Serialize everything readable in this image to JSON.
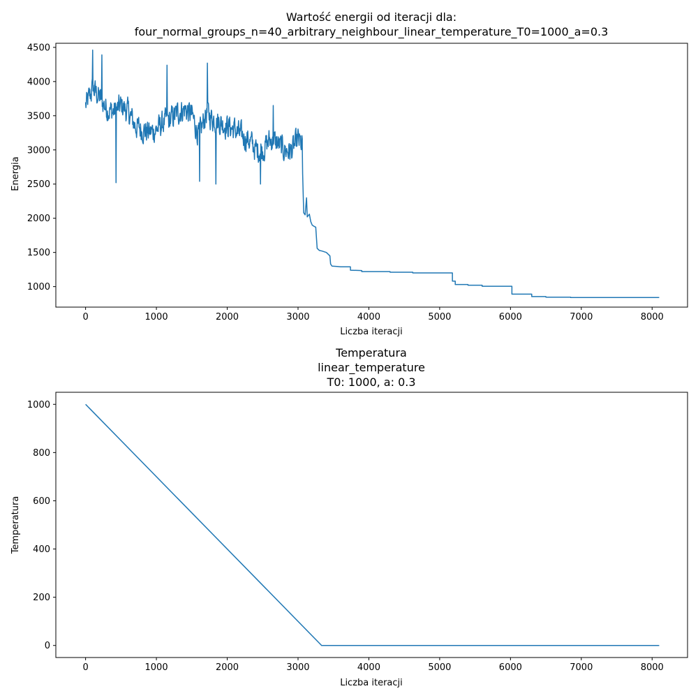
{
  "chart_data": [
    {
      "type": "line",
      "title_line1": "Wartość energii od iteracji dla:",
      "title_line2": "four_normal_groups_n=40_arbitrary_neighbour_linear_temperature_T0=1000_a=0.3",
      "xlabel": "Liczba iteracji",
      "ylabel": "Energia",
      "xlim": [
        -420,
        8500
      ],
      "ylim": [
        700,
        4560
      ],
      "xticks": [
        0,
        1000,
        2000,
        3000,
        4000,
        5000,
        6000,
        7000,
        8000
      ],
      "yticks": [
        1000,
        1500,
        2000,
        2500,
        3000,
        3500,
        4000,
        4500
      ],
      "grid": false,
      "color": "#1f77b4",
      "noisy_segment": {
        "description_free": true,
        "x_range": [
          0,
          3060
        ],
        "anchors": [
          [
            0,
            3650
          ],
          [
            100,
            3900
          ],
          [
            200,
            3750
          ],
          [
            300,
            3600
          ],
          [
            400,
            3550
          ],
          [
            500,
            3650
          ],
          [
            600,
            3550
          ],
          [
            700,
            3350
          ],
          [
            800,
            3300
          ],
          [
            900,
            3250
          ],
          [
            1000,
            3300
          ],
          [
            1100,
            3400
          ],
          [
            1200,
            3450
          ],
          [
            1300,
            3550
          ],
          [
            1400,
            3600
          ],
          [
            1500,
            3500
          ],
          [
            1600,
            3200
          ],
          [
            1700,
            3550
          ],
          [
            1800,
            3450
          ],
          [
            1900,
            3400
          ],
          [
            2000,
            3350
          ],
          [
            2100,
            3300
          ],
          [
            2200,
            3200
          ],
          [
            2300,
            3150
          ],
          [
            2400,
            3000
          ],
          [
            2500,
            3000
          ],
          [
            2600,
            3150
          ],
          [
            2700,
            3100
          ],
          [
            2800,
            3000
          ],
          [
            2900,
            2980
          ],
          [
            3000,
            3150
          ],
          [
            3050,
            3050
          ]
        ],
        "amplitude": 280,
        "extremes": [
          [
            100,
            4460
          ],
          [
            230,
            4390
          ],
          [
            430,
            2520
          ],
          [
            1150,
            4240
          ],
          [
            1720,
            4270
          ],
          [
            1610,
            2540
          ],
          [
            1840,
            2500
          ],
          [
            2650,
            3650
          ],
          [
            2470,
            2500
          ]
        ]
      },
      "descent_segment": [
        [
          3060,
          3050
        ],
        [
          3065,
          2650
        ],
        [
          3080,
          2080
        ],
        [
          3100,
          2050
        ],
        [
          3120,
          2300
        ],
        [
          3130,
          2020
        ],
        [
          3160,
          2060
        ],
        [
          3180,
          1950
        ],
        [
          3200,
          1900
        ],
        [
          3230,
          1880
        ],
        [
          3250,
          1870
        ],
        [
          3270,
          1560
        ],
        [
          3300,
          1530
        ],
        [
          3340,
          1520
        ],
        [
          3400,
          1500
        ],
        [
          3450,
          1450
        ],
        [
          3460,
          1330
        ],
        [
          3480,
          1300
        ],
        [
          3550,
          1295
        ],
        [
          3600,
          1290
        ]
      ],
      "step_segment": [
        [
          3600,
          1290
        ],
        [
          3740,
          1290
        ],
        [
          3740,
          1240
        ],
        [
          3900,
          1235
        ],
        [
          3900,
          1220
        ],
        [
          4300,
          1220
        ],
        [
          4300,
          1210
        ],
        [
          4620,
          1210
        ],
        [
          4620,
          1200
        ],
        [
          5180,
          1200
        ],
        [
          5180,
          1080
        ],
        [
          5220,
          1080
        ],
        [
          5220,
          1030
        ],
        [
          5400,
          1030
        ],
        [
          5400,
          1020
        ],
        [
          5600,
          1020
        ],
        [
          5600,
          1005
        ],
        [
          6020,
          1005
        ],
        [
          6020,
          890
        ],
        [
          6300,
          890
        ],
        [
          6300,
          855
        ],
        [
          6500,
          855
        ],
        [
          6500,
          845
        ],
        [
          6850,
          845
        ],
        [
          6850,
          840
        ],
        [
          8100,
          840
        ]
      ]
    },
    {
      "type": "line",
      "title_line1": "Temperatura",
      "title_line2": "linear_temperature",
      "title_line3": "T0: 1000, a: 0.3",
      "xlabel": "Liczba iteracji",
      "ylabel": "Temperatura",
      "xlim": [
        -420,
        8500
      ],
      "ylim": [
        -50,
        1050
      ],
      "xticks": [
        0,
        1000,
        2000,
        3000,
        4000,
        5000,
        6000,
        7000,
        8000
      ],
      "yticks": [
        0,
        200,
        400,
        600,
        800,
        1000
      ],
      "grid": false,
      "color": "#1f77b4",
      "series": [
        {
          "x": [
            0,
            3333,
            8100
          ],
          "values": [
            1000,
            0,
            0
          ]
        }
      ]
    }
  ]
}
